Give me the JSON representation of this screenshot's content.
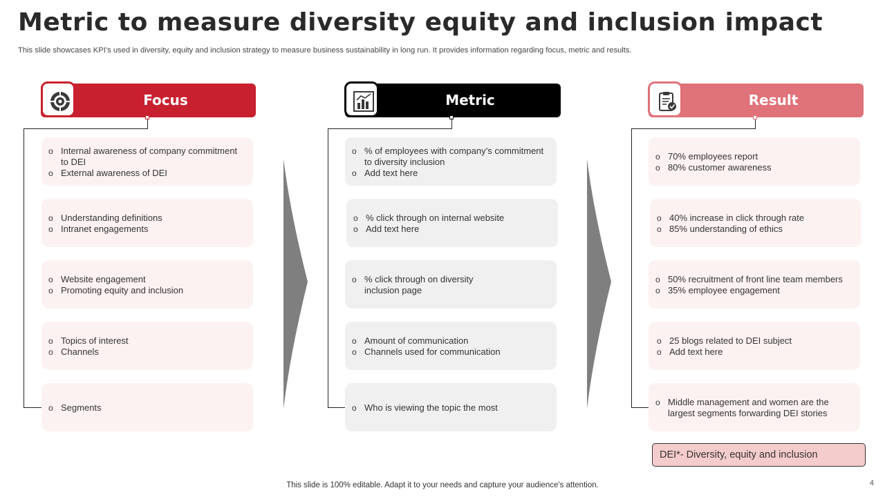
{
  "title": "Metric to measure diversity equity and inclusion impact",
  "subtitle": "This slide showcases KPI’s used in diversity, equity and inclusion strategy to measure business sustainability in long run. It provides information regarding focus, metric and results.",
  "colors": {
    "focus": "#c8202f",
    "metric": "#000000",
    "result": "#e0727a",
    "focus_box": "#fdf2f2",
    "metric_box": "#f0f0f0",
    "result_box": "#fdf2f2",
    "arrow": "#7f7f7f"
  },
  "columns": [
    {
      "id": "focus",
      "label": "Focus",
      "icon": "target-icon",
      "boxes": [
        [
          "Internal awareness of company commitment to DEI",
          "External awareness of DEI"
        ],
        [
          "Understanding definitions",
          "Intranet engagements"
        ],
        [
          "Website engagement",
          "Promoting equity and inclusion"
        ],
        [
          "Topics of interest",
          "Channels"
        ],
        [
          "Segments"
        ]
      ]
    },
    {
      "id": "metric",
      "label": "Metric",
      "icon": "bar-chart-icon",
      "boxes": [
        [
          "% of employees with company’s commitment to diversity inclusion",
          "Add text here"
        ],
        [
          "% click through on internal website",
          "Add text here"
        ],
        [
          "% click through on diversity inclusion page"
        ],
        [
          "Amount of communication",
          "Channels used for communication"
        ],
        [
          "Who is viewing the topic the most"
        ]
      ]
    },
    {
      "id": "result",
      "label": "Result",
      "icon": "clipboard-check-icon",
      "boxes": [
        [
          "70% employees report",
          "80% customer awareness"
        ],
        [
          "40% increase in click through rate",
          "85% understanding of ethics"
        ],
        [
          "50% recruitment of front line team members",
          "35% employee engagement"
        ],
        [
          "25 blogs related to DEI subject",
          "Add text here"
        ],
        [
          "Middle management and women are the largest segments forwarding DEI stories"
        ]
      ]
    }
  ],
  "note": "DEI*- Diversity, equity and inclusion",
  "footer": "This slide is 100% editable. Adapt it to your needs and capture your audience's attention.",
  "page_number": "4"
}
